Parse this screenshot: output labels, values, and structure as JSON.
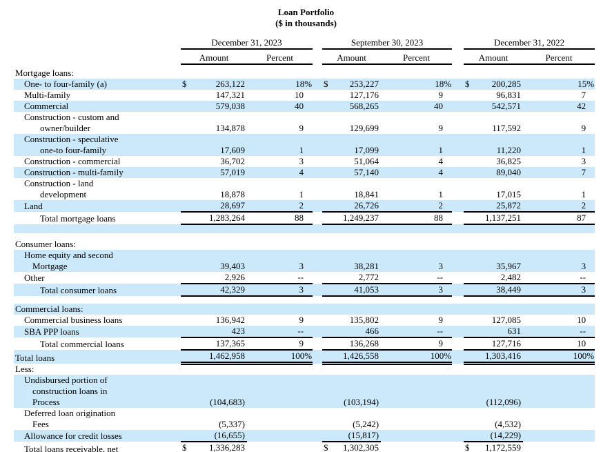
{
  "title": "Loan Portfolio",
  "subtitle": "($ in thousands)",
  "colors": {
    "stripe": "#cbe9fa",
    "text": "#000000",
    "rule": "#000000"
  },
  "columns": {
    "groups": [
      "December 31, 2023",
      "September 30, 2023",
      "December 31, 2022"
    ],
    "sub": [
      "Amount",
      "Percent"
    ]
  },
  "table": {
    "rows": [
      {
        "bg": "w",
        "label": [
          {
            "t": "Mortgage loans:",
            "i": 0
          }
        ]
      },
      {
        "bg": "b",
        "label": [
          {
            "t": "One- to four-family (a)",
            "i": 1
          }
        ],
        "u": 0,
        "cells": [
          [
            "$",
            "263,122",
            "18%"
          ],
          [
            "$",
            "253,227",
            "18%"
          ],
          [
            "$",
            "200,285",
            "15%"
          ]
        ]
      },
      {
        "bg": "w",
        "label": [
          {
            "t": "Multi-family",
            "i": 1
          }
        ],
        "u": 0,
        "cells": [
          [
            "",
            "147,321",
            "10"
          ],
          [
            "",
            "127,176",
            "9"
          ],
          [
            "",
            "96,831",
            "7"
          ]
        ]
      },
      {
        "bg": "b",
        "label": [
          {
            "t": "Commercial",
            "i": 1
          }
        ],
        "u": 0,
        "cells": [
          [
            "",
            "579,038",
            "40"
          ],
          [
            "",
            "568,265",
            "40"
          ],
          [
            "",
            "542,571",
            "42"
          ]
        ]
      },
      {
        "bg": "w",
        "label": [
          {
            "t": "Construction - custom and",
            "i": 1
          },
          {
            "t": "owner/builder",
            "i": 3
          }
        ],
        "u": 0,
        "cells": [
          [
            "",
            "134,878",
            "9"
          ],
          [
            "",
            "129,699",
            "9"
          ],
          [
            "",
            "117,592",
            "9"
          ]
        ]
      },
      {
        "bg": "b",
        "label": [
          {
            "t": "Construction - speculative",
            "i": 1
          },
          {
            "t": "one-to four-family",
            "i": 3
          }
        ],
        "u": 0,
        "cells": [
          [
            "",
            "17,609",
            "1"
          ],
          [
            "",
            "17,099",
            "1"
          ],
          [
            "",
            "11,220",
            "1"
          ]
        ]
      },
      {
        "bg": "w",
        "label": [
          {
            "t": "Construction - commercial",
            "i": 1
          }
        ],
        "u": 0,
        "cells": [
          [
            "",
            "36,702",
            "3"
          ],
          [
            "",
            "51,064",
            "4"
          ],
          [
            "",
            "36,825",
            "3"
          ]
        ]
      },
      {
        "bg": "b",
        "label": [
          {
            "t": "Construction - multi-family",
            "i": 1
          }
        ],
        "u": 0,
        "cells": [
          [
            "",
            "57,019",
            "4"
          ],
          [
            "",
            "57,140",
            "4"
          ],
          [
            "",
            "89,040",
            "7"
          ]
        ]
      },
      {
        "bg": "w",
        "label": [
          {
            "t": "Construction - land",
            "i": 1
          },
          {
            "t": "development",
            "i": 3
          }
        ],
        "u": 0,
        "cells": [
          [
            "",
            "18,878",
            "1"
          ],
          [
            "",
            "18,841",
            "1"
          ],
          [
            "",
            "17,015",
            "1"
          ]
        ]
      },
      {
        "bg": "b",
        "label": [
          {
            "t": "Land",
            "i": 1
          }
        ],
        "u": 1,
        "cells": [
          [
            "",
            "28,697",
            "2"
          ],
          [
            "",
            "26,726",
            "2"
          ],
          [
            "",
            "25,872",
            "2"
          ]
        ]
      },
      {
        "bg": "w",
        "label": [
          {
            "t": "Total mortgage loans",
            "i": 3
          }
        ],
        "u": 1,
        "cells": [
          [
            "",
            "1,283,264",
            "88"
          ],
          [
            "",
            "1,249,237",
            "88"
          ],
          [
            "",
            "1,137,251",
            "87"
          ]
        ]
      },
      {
        "bg": "b",
        "sp": 12
      },
      {
        "bg": "w",
        "sp": 8
      },
      {
        "bg": "w",
        "label": [
          {
            "t": "Consumer loans:",
            "i": 0
          }
        ]
      },
      {
        "bg": "b",
        "label": [
          {
            "t": "Home equity and second",
            "i": 1
          },
          {
            "t": "Mortgage",
            "i": 2
          }
        ],
        "u": 0,
        "cells": [
          [
            "",
            "39,403",
            "3"
          ],
          [
            "",
            "38,281",
            "3"
          ],
          [
            "",
            "35,967",
            "3"
          ]
        ]
      },
      {
        "bg": "w",
        "label": [
          {
            "t": "Other",
            "i": 1
          }
        ],
        "u": 1,
        "cells": [
          [
            "",
            "2,926",
            "--"
          ],
          [
            "",
            "2,772",
            "--"
          ],
          [
            "",
            "2,482",
            "--"
          ]
        ]
      },
      {
        "bg": "b",
        "label": [
          {
            "t": "Total consumer loans",
            "i": 3
          }
        ],
        "u": 1,
        "cells": [
          [
            "",
            "42,329",
            "3"
          ],
          [
            "",
            "41,053",
            "3"
          ],
          [
            "",
            "38,449",
            "3"
          ]
        ]
      },
      {
        "bg": "w",
        "sp": 10
      },
      {
        "bg": "b",
        "label": [
          {
            "t": "Commercial loans:",
            "i": 0
          }
        ]
      },
      {
        "bg": "w",
        "label": [
          {
            "t": "Commercial business loans",
            "i": 1
          }
        ],
        "u": 0,
        "cells": [
          [
            "",
            "136,942",
            "9"
          ],
          [
            "",
            "135,802",
            "9"
          ],
          [
            "",
            "127,085",
            "10"
          ]
        ]
      },
      {
        "bg": "b",
        "label": [
          {
            "t": "SBA PPP loans",
            "i": 1
          }
        ],
        "u": 1,
        "cells": [
          [
            "",
            "423",
            "--"
          ],
          [
            "",
            "466",
            "--"
          ],
          [
            "",
            "631",
            "--"
          ]
        ]
      },
      {
        "bg": "w",
        "label": [
          {
            "t": "Total commercial loans",
            "i": 3
          }
        ],
        "u": 1,
        "cells": [
          [
            "",
            "137,365",
            "9"
          ],
          [
            "",
            "136,268",
            "9"
          ],
          [
            "",
            "127,716",
            "10"
          ]
        ]
      },
      {
        "bg": "b",
        "label": [
          {
            "t": "Total loans",
            "i": 0
          }
        ],
        "u": 2,
        "cells": [
          [
            "",
            "1,462,958",
            "100%"
          ],
          [
            "",
            "1,426,558",
            "100%"
          ],
          [
            "",
            "1,303,416",
            "100%"
          ]
        ]
      },
      {
        "bg": "w",
        "label": [
          {
            "t": "Less:",
            "i": 0
          }
        ]
      },
      {
        "bg": "b",
        "label": [
          {
            "t": "Undisbursed portion of",
            "i": 1
          },
          {
            "t": "construction loans in",
            "i": 2
          },
          {
            "t": "Process",
            "i": 2
          }
        ],
        "u": 0,
        "cells": [
          [
            "",
            "(104,683)",
            ""
          ],
          [
            "",
            "(103,194)",
            ""
          ],
          [
            "",
            "(112,096)",
            ""
          ]
        ]
      },
      {
        "bg": "w",
        "label": [
          {
            "t": "Deferred loan origination",
            "i": 1
          },
          {
            "t": "Fees",
            "i": 2
          }
        ],
        "u": 0,
        "cells": [
          [
            "",
            "(5,337)",
            ""
          ],
          [
            "",
            "(5,242)",
            ""
          ],
          [
            "",
            "(4,532)",
            ""
          ]
        ]
      },
      {
        "bg": "b",
        "label": [
          {
            "t": "Allowance for credit losses",
            "i": 1
          }
        ],
        "u": 1,
        "cells": [
          [
            "",
            "(16,655)",
            ""
          ],
          [
            "",
            "(15,817)",
            ""
          ],
          [
            "",
            "(14,229)",
            ""
          ]
        ]
      },
      {
        "bg": "w",
        "label": [
          {
            "t": "Total loans receivable, net",
            "i": 1
          }
        ],
        "u": 2,
        "cells": [
          [
            "$",
            "1,336,283",
            ""
          ],
          [
            "$",
            "1,302,305",
            ""
          ],
          [
            "$",
            "1,172,559",
            ""
          ]
        ]
      }
    ]
  }
}
